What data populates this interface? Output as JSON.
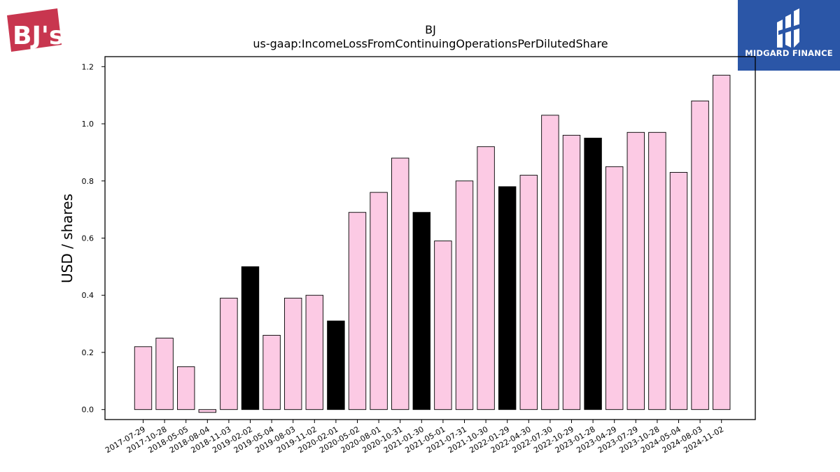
{
  "logos": {
    "left_brand": "BJ's",
    "right_brand": "MIDGARD FINANCE"
  },
  "chart_data": {
    "type": "bar",
    "title": "BJ",
    "subtitle": "us-gaap:IncomeLossFromContinuingOperationsPerDilutedShare",
    "xlabel": "",
    "ylabel": "USD / shares",
    "ylim": [
      -0.035,
      1.235
    ],
    "yticks": [
      0.0,
      0.2,
      0.4,
      0.6,
      0.8,
      1.0,
      1.2
    ],
    "ytick_labels": [
      "0.0",
      "0.2",
      "0.4",
      "0.6",
      "0.8",
      "1.0",
      "1.2"
    ],
    "grid": false,
    "legend": "none",
    "colors": {
      "default": "#fccae4",
      "highlight": "#000000",
      "edge": "#000000"
    },
    "categories": [
      "2017-07-29",
      "2017-10-28",
      "2018-05-05",
      "2018-08-04",
      "2018-11-03",
      "2019-02-02",
      "2019-05-04",
      "2019-08-03",
      "2019-11-02",
      "2020-02-01",
      "2020-05-02",
      "2020-08-01",
      "2020-10-31",
      "2021-01-30",
      "2021-05-01",
      "2021-07-31",
      "2021-10-30",
      "2022-01-29",
      "2022-04-30",
      "2022-07-30",
      "2022-10-29",
      "2023-01-28",
      "2023-04-29",
      "2023-07-29",
      "2023-10-28",
      "2024-05-04",
      "2024-08-03",
      "2024-11-02"
    ],
    "values": [
      0.22,
      0.25,
      0.15,
      -0.01,
      0.39,
      0.5,
      0.26,
      0.39,
      0.4,
      0.31,
      0.69,
      0.76,
      0.88,
      0.69,
      0.59,
      0.8,
      0.92,
      0.78,
      0.82,
      1.03,
      0.96,
      0.95,
      0.85,
      0.97,
      0.97,
      0.83,
      1.08,
      1.17
    ],
    "highlight": [
      false,
      false,
      false,
      false,
      false,
      true,
      false,
      false,
      false,
      true,
      false,
      false,
      false,
      true,
      false,
      false,
      false,
      true,
      false,
      false,
      false,
      true,
      false,
      false,
      false,
      false,
      false,
      false
    ]
  }
}
